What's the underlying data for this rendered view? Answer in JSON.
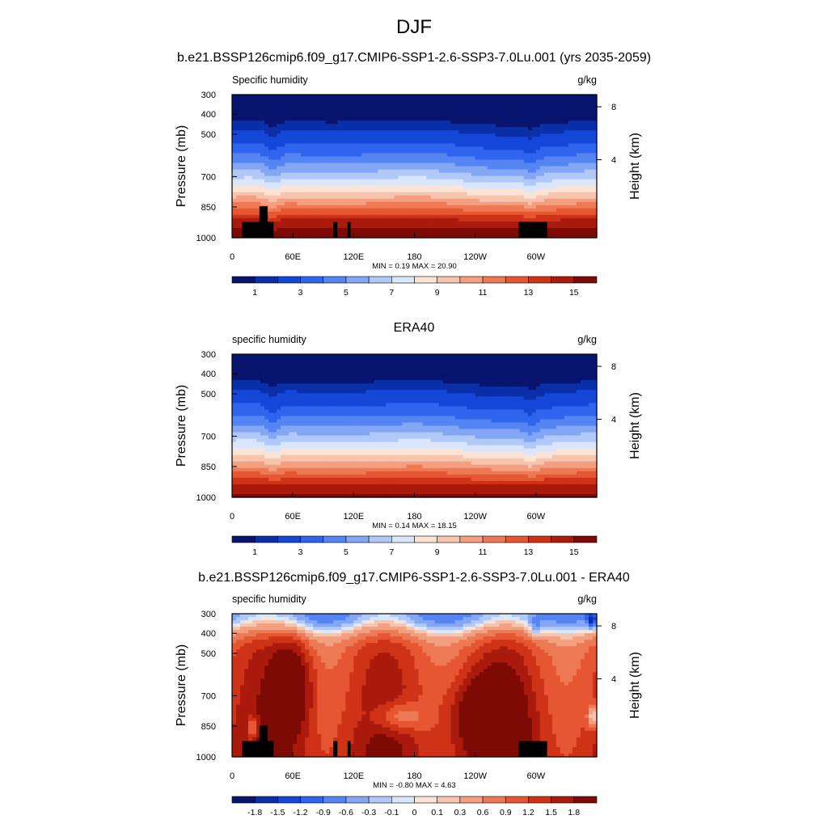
{
  "figure": {
    "title": "DJF",
    "panel_titles": [
      "b.e21.BSSP126cmip6.f09_g17.CMIP6-SSP1-2.6-SSP3-7.0Lu.001 (yrs 2035-2059)",
      "ERA40",
      "b.e21.BSSP126cmip6.f09_g17.CMIP6-SSP1-2.6-SSP3-7.0Lu.001 - ERA40"
    ]
  },
  "chart_data": [
    {
      "type": "heatmap",
      "left_label": "Specific humidity",
      "right_label": "g/kg",
      "ylabel": "Pressure (mb)",
      "ylabel_right": "Height (km)",
      "xticks": [
        "0",
        "60E",
        "120E",
        "180",
        "120W",
        "60W"
      ],
      "yticks": [
        "300",
        "400",
        "500",
        "700",
        "850",
        "1000"
      ],
      "yticks_right": [
        "8",
        "4"
      ],
      "stats": "MIN =   0.19  MAX =  20.90",
      "colorbar_labels": [
        "1",
        "3",
        "5",
        "7",
        "9",
        "11",
        "13",
        "15"
      ],
      "colorbar_colors": [
        "#08156e",
        "#0b2fa8",
        "#1446d8",
        "#2e64ee",
        "#5585f2",
        "#84a7f5",
        "#b0c9f8",
        "#d9e6fb",
        "#fbe3d6",
        "#f7c4ae",
        "#f39f80",
        "#ee7a55",
        "#e65632",
        "#cf3317",
        "#aa1b0d",
        "#7d0a05"
      ],
      "min": 0.19,
      "max": 20.9,
      "field": "absolute"
    },
    {
      "type": "heatmap",
      "left_label": "specific humidity",
      "right_label": "g/kg",
      "ylabel": "Pressure (mb)",
      "ylabel_right": "Height (km)",
      "xticks": [
        "0",
        "60E",
        "120E",
        "180",
        "120W",
        "60W"
      ],
      "yticks": [
        "300",
        "400",
        "500",
        "700",
        "850",
        "1000"
      ],
      "yticks_right": [
        "8",
        "4"
      ],
      "stats": "MIN =   0.14  MAX =  18.15",
      "colorbar_labels": [
        "1",
        "3",
        "5",
        "7",
        "9",
        "11",
        "13",
        "15"
      ],
      "colorbar_colors": [
        "#08156e",
        "#0b2fa8",
        "#1446d8",
        "#2e64ee",
        "#5585f2",
        "#84a7f5",
        "#b0c9f8",
        "#d9e6fb",
        "#fbe3d6",
        "#f7c4ae",
        "#f39f80",
        "#ee7a55",
        "#e65632",
        "#cf3317",
        "#aa1b0d",
        "#7d0a05"
      ],
      "min": 0.14,
      "max": 18.15,
      "field": "absolute"
    },
    {
      "type": "heatmap",
      "left_label": "specific humidity",
      "right_label": "g/kg",
      "ylabel": "Pressure (mb)",
      "ylabel_right": "Height (km)",
      "xticks": [
        "0",
        "60E",
        "120E",
        "180",
        "120W",
        "60W"
      ],
      "yticks": [
        "300",
        "400",
        "500",
        "700",
        "850",
        "1000"
      ],
      "yticks_right": [
        "8",
        "4"
      ],
      "stats": "MIN =  -0.80  MAX =   4.63",
      "colorbar_labels": [
        "-1.8",
        "-1.5",
        "-1.2",
        "-0.9",
        "-0.6",
        "-0.3",
        "-0.1",
        "0",
        "0.1",
        "0.3",
        "0.6",
        "0.9",
        "1.2",
        "1.5",
        "1.8"
      ],
      "colorbar_colors": [
        "#08156e",
        "#0b2fa8",
        "#1446d8",
        "#2e64ee",
        "#5585f2",
        "#84a7f5",
        "#b0c9f8",
        "#d9e6fb",
        "#fbe3d6",
        "#f7c4ae",
        "#f39f80",
        "#ee7a55",
        "#e65632",
        "#cf3317",
        "#aa1b0d",
        "#7d0a05"
      ],
      "min": -0.8,
      "max": 4.63,
      "field": "difference"
    }
  ]
}
